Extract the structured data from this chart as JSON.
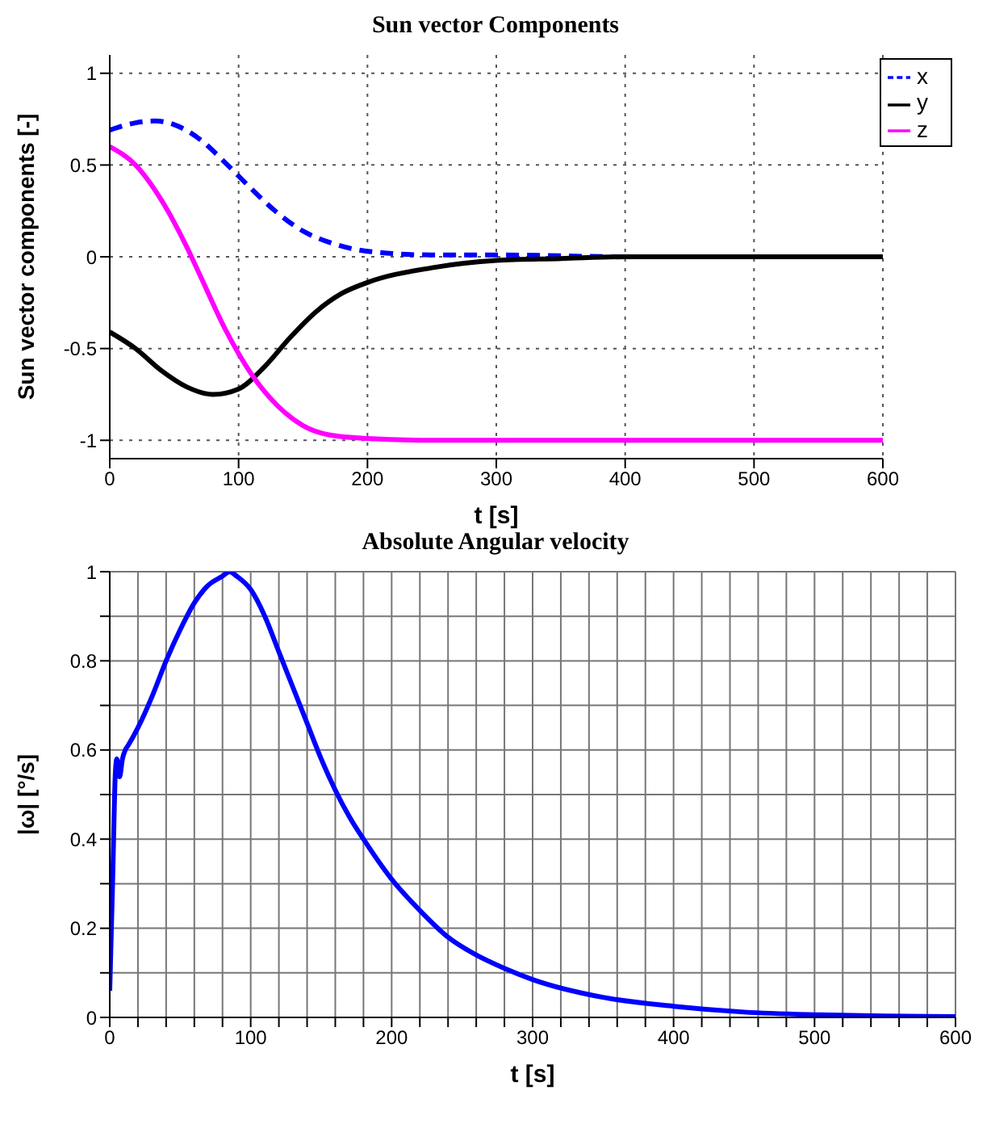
{
  "chart_data": [
    {
      "type": "line",
      "title": "Sun vector Components",
      "xlabel": "t [s]",
      "ylabel": "Sun vector components [-]",
      "xlim": [
        0,
        600
      ],
      "ylim": [
        -1.1,
        1.1
      ],
      "xticks": [
        0,
        100,
        200,
        300,
        400,
        500,
        600
      ],
      "yticks": [
        -1,
        -0.5,
        0,
        0.5,
        1
      ],
      "grid": true,
      "legend": "top right",
      "marker": "none",
      "series": [
        {
          "name": "x",
          "color": "#0000ff",
          "line_style": "dashed",
          "x": [
            0,
            20,
            35,
            50,
            70,
            90,
            110,
            130,
            150,
            170,
            200,
            250,
            300,
            400,
            600
          ],
          "values": [
            0.69,
            0.73,
            0.74,
            0.72,
            0.64,
            0.51,
            0.37,
            0.24,
            0.14,
            0.08,
            0.03,
            0.01,
            0.01,
            0,
            0
          ]
        },
        {
          "name": "y",
          "color": "#000000",
          "line_style": "solid",
          "x": [
            0,
            20,
            40,
            60,
            80,
            100,
            120,
            140,
            160,
            180,
            200,
            250,
            300,
            350,
            400,
            600
          ],
          "values": [
            -0.41,
            -0.5,
            -0.62,
            -0.71,
            -0.75,
            -0.72,
            -0.6,
            -0.44,
            -0.3,
            -0.2,
            -0.14,
            -0.06,
            -0.02,
            -0.01,
            0,
            0
          ]
        },
        {
          "name": "z",
          "color": "#ff00ff",
          "line_style": "solid",
          "x": [
            0,
            20,
            40,
            60,
            70,
            90,
            110,
            130,
            150,
            170,
            200,
            250,
            600
          ],
          "values": [
            0.6,
            0.5,
            0.31,
            0.05,
            -0.1,
            -0.4,
            -0.64,
            -0.81,
            -0.92,
            -0.97,
            -0.99,
            -1,
            -1
          ]
        }
      ]
    },
    {
      "type": "line",
      "title": "Absolute Angular velocity",
      "xlabel": "t [s]",
      "ylabel": "|ω|   [°/s]",
      "xlim": [
        0,
        600
      ],
      "ylim": [
        0,
        1
      ],
      "xticks": [
        0,
        {
          "value": 20,
          "label": null
        },
        {
          "value": 40,
          "label": null
        },
        {
          "value": 60,
          "label": null
        },
        {
          "value": 80,
          "label": null
        },
        100,
        {
          "value": 120,
          "label": null
        },
        {
          "value": 140,
          "label": null
        },
        {
          "value": 160,
          "label": null
        },
        {
          "value": 180,
          "label": null
        },
        200,
        {
          "value": 220,
          "label": null
        },
        {
          "value": 240,
          "label": null
        },
        {
          "value": 260,
          "label": null
        },
        {
          "value": 280,
          "label": null
        },
        300,
        {
          "value": 320,
          "label": null
        },
        {
          "value": 340,
          "label": null
        },
        {
          "value": 360,
          "label": null
        },
        {
          "value": 380,
          "label": null
        },
        400,
        {
          "value": 420,
          "label": null
        },
        {
          "value": 440,
          "label": null
        },
        {
          "value": 460,
          "label": null
        },
        {
          "value": 480,
          "label": null
        },
        500,
        {
          "value": 520,
          "label": null
        },
        {
          "value": 540,
          "label": null
        },
        {
          "value": 560,
          "label": null
        },
        {
          "value": 580,
          "label": null
        },
        600
      ],
      "yticks": [
        0,
        {
          "value": 0.1,
          "label": null
        },
        0.2,
        {
          "value": 0.3,
          "label": null
        },
        0.4,
        {
          "value": 0.5,
          "label": null
        },
        0.6,
        {
          "value": 0.7,
          "label": null
        },
        0.8,
        {
          "value": 0.9,
          "label": null
        },
        1
      ],
      "grid": true,
      "legend": false,
      "marker": "none",
      "series": [
        {
          "color": "#0000ff",
          "line_style": "solid",
          "x": [
            0,
            2,
            4,
            5,
            7,
            9,
            11,
            13,
            20,
            30,
            40,
            50,
            60,
            70,
            80,
            85,
            90,
            100,
            110,
            120,
            130,
            140,
            150,
            160,
            170,
            180,
            200,
            220,
            240,
            260,
            280,
            300,
            350,
            400,
            450,
            500,
            550,
            600
          ],
          "values": [
            0.06,
            0.3,
            0.55,
            0.58,
            0.54,
            0.58,
            0.6,
            0.61,
            0.65,
            0.72,
            0.8,
            0.87,
            0.93,
            0.97,
            0.99,
            1.0,
            0.99,
            0.96,
            0.9,
            0.82,
            0.74,
            0.66,
            0.58,
            0.51,
            0.45,
            0.4,
            0.31,
            0.24,
            0.18,
            0.14,
            0.11,
            0.085,
            0.045,
            0.025,
            0.012,
            0.006,
            0.003,
            0.002
          ]
        }
      ]
    }
  ]
}
